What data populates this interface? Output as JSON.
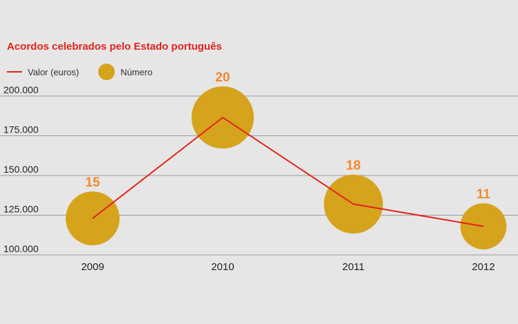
{
  "chart_data": {
    "type": "line",
    "title": "Acordos celebrados pelo Estado português",
    "categories": [
      "2009",
      "2010",
      "2011",
      "2012"
    ],
    "series": [
      {
        "name": "Valor (euros)",
        "values": [
          123000,
          186500,
          132000,
          118000
        ]
      },
      {
        "name": "Número",
        "values": [
          15,
          20,
          18,
          11
        ]
      }
    ],
    "y_ticks": [
      "200.000",
      "175.000",
      "150.000",
      "125.000",
      "100.000"
    ],
    "ylim": [
      100000,
      200000
    ],
    "grid": true,
    "legend": "top-left",
    "colors": {
      "line": "#e2231a",
      "bubble": "#d6a31d",
      "bubble_label": "#f08a2c",
      "grid": "#9a9a9a"
    }
  }
}
